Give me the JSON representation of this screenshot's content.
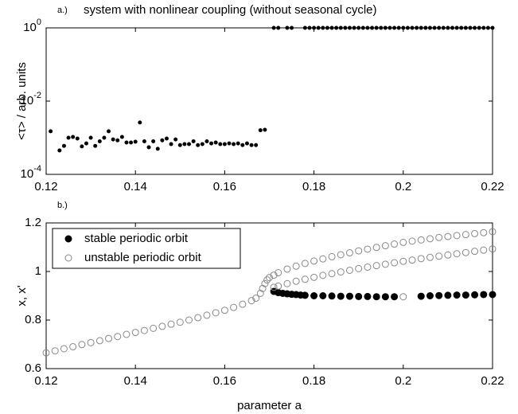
{
  "chart_data": [
    {
      "type": "scatter",
      "panel_label": "a.)",
      "title": "system with nonlinear coupling (without seasonal cycle)",
      "ylabel": "<τ> / arb. units",
      "yscale": "log",
      "xlim": [
        0.12,
        0.22
      ],
      "xticks": [
        0.12,
        0.14,
        0.16,
        0.18,
        0.2,
        0.22
      ],
      "ylim": [
        0.0001,
        1
      ],
      "yticks": [
        {
          "value": 0.0001,
          "label": "10^-4"
        },
        {
          "value": 0.01,
          "label": "10^-2"
        },
        {
          "value": 1,
          "label": "10^0"
        }
      ],
      "series": [
        {
          "color": "#000000",
          "filled": true,
          "x": [
            0.121,
            0.123,
            0.124,
            0.125,
            0.126,
            0.127,
            0.128,
            0.129,
            0.13,
            0.131,
            0.132,
            0.133,
            0.134,
            0.135,
            0.136,
            0.137,
            0.138,
            0.139,
            0.14,
            0.141,
            0.142,
            0.143,
            0.144,
            0.145,
            0.146,
            0.147,
            0.148,
            0.149,
            0.15,
            0.151,
            0.152,
            0.153,
            0.154,
            0.155,
            0.156,
            0.157,
            0.158,
            0.159,
            0.16,
            0.161,
            0.162,
            0.163,
            0.164,
            0.165,
            0.166,
            0.167,
            0.168,
            0.169,
            0.171,
            0.172,
            0.174,
            0.175,
            0.178,
            0.179,
            0.18,
            0.181,
            0.182,
            0.183,
            0.184,
            0.185,
            0.186,
            0.187,
            0.188,
            0.189,
            0.19,
            0.191,
            0.192,
            0.193,
            0.194,
            0.195,
            0.196,
            0.197,
            0.198,
            0.199,
            0.2,
            0.201,
            0.202,
            0.203,
            0.204,
            0.205,
            0.206,
            0.207,
            0.208,
            0.209,
            0.21,
            0.211,
            0.212,
            0.213,
            0.214,
            0.215,
            0.216,
            0.217,
            0.218,
            0.219,
            0.22
          ],
          "values": [
            0.0015,
            0.00045,
            0.0006,
            0.001,
            0.00105,
            0.00095,
            0.00058,
            0.0007,
            0.001,
            0.0006,
            0.0008,
            0.001,
            0.0015,
            0.0009,
            0.00085,
            0.00105,
            0.00074,
            0.00074,
            0.00078,
            0.0026,
            0.0008,
            0.00055,
            0.0008,
            0.0005,
            0.00085,
            0.00095,
            0.00067,
            0.0009,
            0.00063,
            0.00067,
            0.00067,
            0.0008,
            0.00063,
            0.00067,
            0.0008,
            0.0007,
            0.00074,
            0.00067,
            0.00067,
            0.0007,
            0.00067,
            0.0007,
            0.00063,
            0.0007,
            0.00063,
            0.00063,
            0.0016,
            0.00165,
            1,
            1,
            1,
            1,
            1,
            1,
            1,
            1,
            1,
            1,
            1,
            1,
            1,
            1,
            1,
            1,
            1,
            1,
            1,
            1,
            1,
            1,
            1,
            1,
            1,
            1,
            1,
            1,
            1,
            1,
            1,
            1,
            1,
            1,
            1,
            1,
            1,
            1,
            1,
            1,
            1,
            1,
            1,
            1,
            1,
            1,
            1
          ]
        }
      ]
    },
    {
      "type": "scatter",
      "panel_label": "b.)",
      "xlabel": "parameter a",
      "ylabel": "x, x'",
      "xlim": [
        0.12,
        0.22
      ],
      "xticks": [
        0.12,
        0.14,
        0.16,
        0.18,
        0.2,
        0.22
      ],
      "ylim": [
        0.6,
        1.2
      ],
      "yticks": [
        0.6,
        0.8,
        1,
        1.2
      ],
      "legend": "upper left",
      "series": [
        {
          "name": "stable periodic orbit",
          "color": "#000000",
          "filled": true,
          "x": [
            0.171,
            0.172,
            0.173,
            0.174,
            0.175,
            0.176,
            0.177,
            0.178,
            0.18,
            0.182,
            0.184,
            0.186,
            0.188,
            0.19,
            0.192,
            0.194,
            0.196,
            0.198,
            0.204,
            0.206,
            0.208,
            0.21,
            0.212,
            0.214,
            0.216,
            0.218,
            0.22
          ],
          "values": [
            0.918,
            0.913,
            0.91,
            0.908,
            0.906,
            0.905,
            0.903,
            0.902,
            0.9,
            0.9,
            0.899,
            0.898,
            0.898,
            0.897,
            0.897,
            0.896,
            0.896,
            0.896,
            0.898,
            0.9,
            0.901,
            0.902,
            0.903,
            0.903,
            0.904,
            0.905,
            0.905
          ]
        },
        {
          "name": "unstable periodic orbit",
          "color": "#888888",
          "filled": false,
          "x": [
            0.12,
            0.122,
            0.124,
            0.126,
            0.128,
            0.13,
            0.132,
            0.134,
            0.136,
            0.138,
            0.14,
            0.142,
            0.144,
            0.146,
            0.148,
            0.15,
            0.152,
            0.154,
            0.156,
            0.158,
            0.16,
            0.162,
            0.164,
            0.166,
            0.167,
            0.168,
            0.1685,
            0.169,
            0.1695,
            0.17,
            0.171,
            0.172,
            0.174,
            0.176,
            0.178,
            0.18,
            0.182,
            0.184,
            0.186,
            0.188,
            0.19,
            0.192,
            0.194,
            0.196,
            0.198,
            0.2,
            0.202,
            0.204,
            0.206,
            0.208,
            0.21,
            0.212,
            0.214,
            0.216,
            0.218,
            0.22,
            0.171,
            0.172,
            0.174,
            0.176,
            0.178,
            0.18,
            0.182,
            0.184,
            0.186,
            0.188,
            0.19,
            0.192,
            0.194,
            0.196,
            0.198,
            0.2,
            0.202,
            0.204,
            0.206,
            0.208,
            0.21,
            0.212,
            0.214,
            0.216,
            0.218,
            0.22,
            0.2
          ],
          "values": [
            0.665,
            0.673,
            0.682,
            0.69,
            0.699,
            0.707,
            0.715,
            0.724,
            0.732,
            0.741,
            0.749,
            0.757,
            0.766,
            0.774,
            0.783,
            0.791,
            0.8,
            0.81,
            0.82,
            0.83,
            0.84,
            0.852,
            0.865,
            0.88,
            0.89,
            0.91,
            0.93,
            0.95,
            0.965,
            0.975,
            0.985,
            0.995,
            1.01,
            1.022,
            1.033,
            1.043,
            1.052,
            1.061,
            1.069,
            1.077,
            1.085,
            1.092,
            1.099,
            1.106,
            1.113,
            1.12,
            1.125,
            1.13,
            1.135,
            1.14,
            1.144,
            1.148,
            1.152,
            1.156,
            1.16,
            1.164,
            0.935,
            0.94,
            0.95,
            0.96,
            0.968,
            0.976,
            0.984,
            0.991,
            0.998,
            1.005,
            1.012,
            1.018,
            1.024,
            1.03,
            1.036,
            1.042,
            1.047,
            1.053,
            1.058,
            1.063,
            1.068,
            1.073,
            1.078,
            1.083,
            1.088,
            1.093,
            0.896
          ]
        }
      ]
    }
  ]
}
